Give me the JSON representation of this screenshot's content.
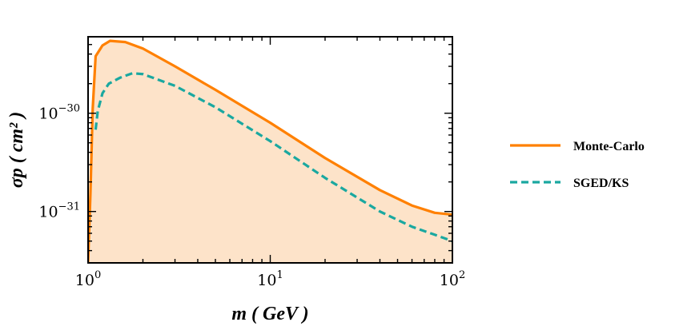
{
  "chart_data": {
    "type": "line",
    "x_scale": "log",
    "y_scale": "log",
    "xlim": [
      1,
      100
    ],
    "ylim": [
      3e-32,
      6e-30
    ],
    "xlabel": "m ( GeV )",
    "ylabel": "σp ( cm² )",
    "x_ticks": [
      {
        "base": "10",
        "exp": "0",
        "value": 1
      },
      {
        "base": "10",
        "exp": "1",
        "value": 10
      },
      {
        "base": "10",
        "exp": "2",
        "value": 100
      }
    ],
    "y_ticks": [
      {
        "base": "10",
        "exp": "−31",
        "value": 1e-31
      },
      {
        "base": "10",
        "exp": "−30",
        "value": 1e-30
      }
    ],
    "legend_position": "right, outside plot",
    "series": [
      {
        "name": "Monte-Carlo",
        "color": "#ff8000",
        "style": "solid",
        "fill_below": true,
        "fill_color": "#fde3c9",
        "x": [
          1.0,
          1.03,
          1.06,
          1.1,
          1.2,
          1.32,
          1.6,
          2.0,
          3.0,
          5.0,
          10,
          20,
          40,
          60,
          80,
          100
        ],
        "y": [
          3e-32,
          1.5e-31,
          1.1e-30,
          3.8e-30,
          4.9e-30,
          5.45e-30,
          5.3e-30,
          4.55e-30,
          3e-30,
          1.73e-30,
          8e-31,
          3.5e-31,
          1.65e-31,
          1.15e-31,
          9.7e-32,
          9.3e-32
        ]
      },
      {
        "name": "SGED/KS",
        "color": "#1aa8a0",
        "style": "dashed",
        "x": [
          1.1,
          1.13,
          1.2,
          1.3,
          1.5,
          1.75,
          2.0,
          3.0,
          5.0,
          10,
          20,
          40,
          60,
          80,
          100
        ],
        "y": [
          6.8e-31,
          1.05e-30,
          1.6e-30,
          2e-30,
          2.3e-30,
          2.55e-30,
          2.5e-30,
          1.9e-30,
          1.15e-30,
          5.2e-31,
          2.2e-31,
          1e-31,
          7e-32,
          5.8e-32,
          5e-32
        ]
      }
    ]
  }
}
